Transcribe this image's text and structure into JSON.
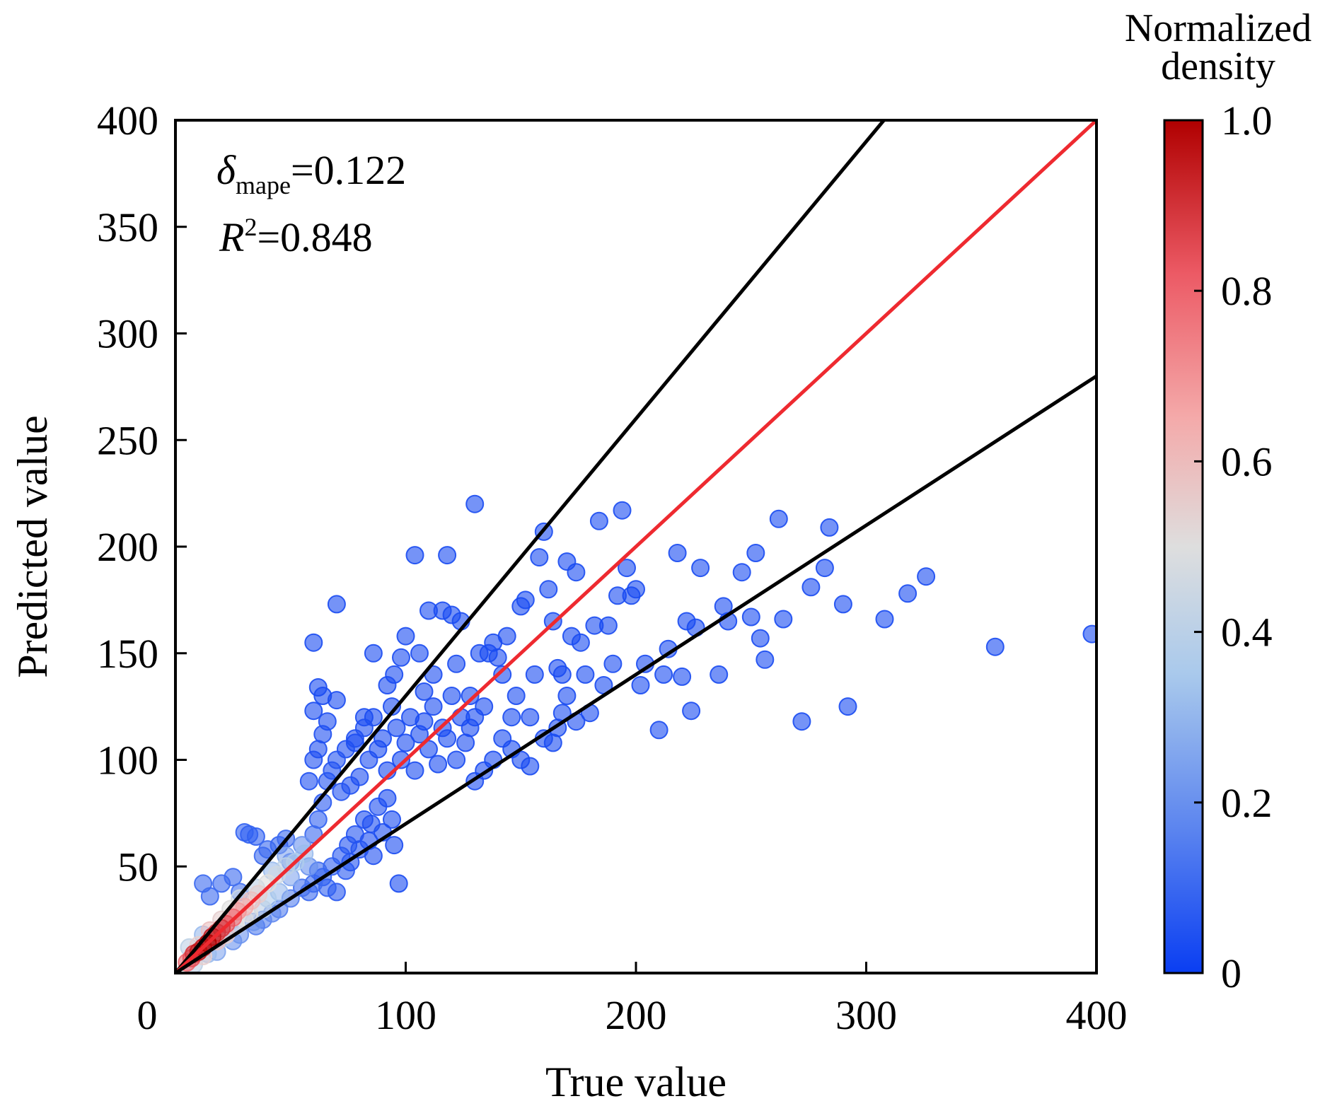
{
  "chart_data": {
    "type": "scatter",
    "title": "",
    "xlabel": "True value",
    "ylabel": "Predicted value",
    "xlim": [
      0,
      400
    ],
    "ylim": [
      0,
      400
    ],
    "x_ticks": [
      "0",
      "100",
      "200",
      "300",
      "400"
    ],
    "y_ticks": [
      "50",
      "100",
      "150",
      "200",
      "250",
      "300",
      "350",
      "400"
    ],
    "grid": false,
    "annotations": {
      "mape_symbol": "δ",
      "mape_subscript": "mape",
      "mape_value": "=0.122",
      "r2_symbol": "R",
      "r2_superscript": "2",
      "r2_value": "=0.848"
    },
    "lines": [
      {
        "slope": 1.3,
        "color": "#000000"
      },
      {
        "slope": 1.0,
        "color": "#ee2a30"
      },
      {
        "slope": 0.7,
        "color": "#000000"
      }
    ],
    "colorbar": {
      "title_line1": "Normalized",
      "title_line2": "density",
      "ticks": [
        "0",
        "0.2",
        "0.4",
        "0.6",
        "0.8",
        "1.0"
      ],
      "colors": [
        "#0a3ef2",
        "#5c85ef",
        "#a9c9ec",
        "#dedede",
        "#f4aaaa",
        "#ec5a65",
        "#b00000"
      ]
    },
    "points": [
      [
        5,
        5,
        0.8
      ],
      [
        7,
        7,
        0.85
      ],
      [
        8,
        9,
        0.9
      ],
      [
        10,
        10,
        0.95
      ],
      [
        12,
        12,
        0.95
      ],
      [
        14,
        14,
        1.0
      ],
      [
        16,
        17,
        0.95
      ],
      [
        18,
        19,
        0.9
      ],
      [
        20,
        21,
        0.9
      ],
      [
        22,
        23,
        0.85
      ],
      [
        25,
        26,
        0.8
      ],
      [
        27,
        29,
        0.7
      ],
      [
        30,
        31,
        0.65
      ],
      [
        33,
        34,
        0.6
      ],
      [
        36,
        37,
        0.55
      ],
      [
        40,
        42,
        0.5
      ],
      [
        44,
        46,
        0.45
      ],
      [
        48,
        50,
        0.4
      ],
      [
        52,
        52,
        0.35
      ],
      [
        56,
        56,
        0.3
      ],
      [
        10,
        13,
        0.55
      ],
      [
        12,
        8,
        0.55
      ],
      [
        15,
        20,
        0.6
      ],
      [
        18,
        15,
        0.6
      ],
      [
        20,
        25,
        0.55
      ],
      [
        22,
        18,
        0.55
      ],
      [
        24,
        30,
        0.5
      ],
      [
        26,
        22,
        0.5
      ],
      [
        28,
        35,
        0.45
      ],
      [
        30,
        25,
        0.45
      ],
      [
        32,
        28,
        0.5
      ],
      [
        35,
        40,
        0.4
      ],
      [
        38,
        30,
        0.4
      ],
      [
        40,
        35,
        0.35
      ],
      [
        42,
        48,
        0.3
      ],
      [
        45,
        38,
        0.3
      ],
      [
        48,
        55,
        0.25
      ],
      [
        50,
        45,
        0.25
      ],
      [
        55,
        60,
        0.2
      ],
      [
        58,
        50,
        0.2
      ],
      [
        6,
        12,
        0.4
      ],
      [
        8,
        4,
        0.4
      ],
      [
        12,
        18,
        0.3
      ],
      [
        14,
        9,
        0.3
      ],
      [
        18,
        10,
        0.25
      ],
      [
        20,
        16,
        0.35
      ],
      [
        25,
        15,
        0.2
      ],
      [
        28,
        18,
        0.2
      ],
      [
        35,
        22,
        0.15
      ],
      [
        38,
        25,
        0.15
      ],
      [
        15,
        36,
        0.1
      ],
      [
        12,
        42,
        0.1
      ],
      [
        20,
        42,
        0.1
      ],
      [
        25,
        45,
        0.1
      ],
      [
        28,
        38,
        0.12
      ],
      [
        30,
        66,
        0.08
      ],
      [
        32,
        65,
        0.08
      ],
      [
        35,
        64,
        0.08
      ],
      [
        38,
        55,
        0.1
      ],
      [
        40,
        58,
        0.1
      ],
      [
        45,
        60,
        0.08
      ],
      [
        48,
        63,
        0.1
      ],
      [
        50,
        52,
        0.12
      ],
      [
        34,
        24,
        0.2
      ],
      [
        42,
        28,
        0.18
      ],
      [
        45,
        30,
        0.15
      ],
      [
        50,
        35,
        0.15
      ],
      [
        55,
        40,
        0.12
      ],
      [
        58,
        38,
        0.1
      ],
      [
        60,
        42,
        0.1
      ],
      [
        62,
        48,
        0.1
      ],
      [
        64,
        45,
        0.08
      ],
      [
        66,
        40,
        0.08
      ],
      [
        68,
        50,
        0.08
      ],
      [
        70,
        38,
        0.06
      ],
      [
        72,
        55,
        0.06
      ],
      [
        74,
        48,
        0.06
      ],
      [
        75,
        60,
        0.05
      ],
      [
        76,
        52,
        0.05
      ],
      [
        78,
        65,
        0.05
      ],
      [
        80,
        58,
        0.05
      ],
      [
        82,
        72,
        0.04
      ],
      [
        84,
        62,
        0.04
      ],
      [
        85,
        70,
        0.04
      ],
      [
        86,
        55,
        0.04
      ],
      [
        88,
        78,
        0.04
      ],
      [
        90,
        66,
        0.04
      ],
      [
        92,
        82,
        0.03
      ],
      [
        94,
        72,
        0.03
      ],
      [
        95,
        60,
        0.03
      ],
      [
        97,
        42,
        0.03
      ],
      [
        60,
        65,
        0.1
      ],
      [
        62,
        72,
        0.08
      ],
      [
        64,
        80,
        0.06
      ],
      [
        66,
        90,
        0.05
      ],
      [
        68,
        95,
        0.05
      ],
      [
        70,
        100,
        0.05
      ],
      [
        72,
        85,
        0.05
      ],
      [
        74,
        105,
        0.04
      ],
      [
        76,
        88,
        0.04
      ],
      [
        78,
        110,
        0.04
      ],
      [
        80,
        92,
        0.04
      ],
      [
        82,
        115,
        0.04
      ],
      [
        84,
        100,
        0.04
      ],
      [
        86,
        120,
        0.03
      ],
      [
        88,
        105,
        0.03
      ],
      [
        90,
        110,
        0.03
      ],
      [
        92,
        95,
        0.03
      ],
      [
        94,
        125,
        0.03
      ],
      [
        96,
        115,
        0.03
      ],
      [
        98,
        100,
        0.03
      ],
      [
        100,
        108,
        0.03
      ],
      [
        102,
        120,
        0.03
      ],
      [
        104,
        95,
        0.03
      ],
      [
        106,
        112,
        0.03
      ],
      [
        108,
        118,
        0.03
      ],
      [
        110,
        105,
        0.03
      ],
      [
        112,
        125,
        0.03
      ],
      [
        114,
        98,
        0.03
      ],
      [
        116,
        115,
        0.03
      ],
      [
        118,
        110,
        0.03
      ],
      [
        120,
        130,
        0.03
      ],
      [
        122,
        100,
        0.03
      ],
      [
        124,
        120,
        0.03
      ],
      [
        126,
        108,
        0.03
      ],
      [
        128,
        115,
        0.03
      ],
      [
        58,
        90,
        0.04
      ],
      [
        60,
        100,
        0.04
      ],
      [
        62,
        105,
        0.04
      ],
      [
        64,
        112,
        0.04
      ],
      [
        66,
        118,
        0.04
      ],
      [
        60,
        123,
        0.03
      ],
      [
        62,
        134,
        0.03
      ],
      [
        64,
        130,
        0.03
      ],
      [
        70,
        128,
        0.03
      ],
      [
        60,
        155,
        0.03
      ],
      [
        70,
        173,
        0.03
      ],
      [
        78,
        108,
        0.03
      ],
      [
        82,
        120,
        0.03
      ],
      [
        86,
        150,
        0.03
      ],
      [
        92,
        135,
        0.03
      ],
      [
        95,
        140,
        0.03
      ],
      [
        98,
        148,
        0.03
      ],
      [
        100,
        158,
        0.03
      ],
      [
        104,
        196,
        0.03
      ],
      [
        106,
        150,
        0.03
      ],
      [
        108,
        132,
        0.03
      ],
      [
        110,
        170,
        0.03
      ],
      [
        112,
        140,
        0.03
      ],
      [
        116,
        170,
        0.03
      ],
      [
        118,
        196,
        0.03
      ],
      [
        120,
        168,
        0.03
      ],
      [
        122,
        145,
        0.03
      ],
      [
        124,
        165,
        0.03
      ],
      [
        130,
        220,
        0.03
      ],
      [
        128,
        130,
        0.03
      ],
      [
        130,
        120,
        0.03
      ],
      [
        132,
        150,
        0.03
      ],
      [
        134,
        125,
        0.03
      ],
      [
        136,
        150,
        0.03
      ],
      [
        138,
        155,
        0.03
      ],
      [
        140,
        148,
        0.03
      ],
      [
        142,
        140,
        0.03
      ],
      [
        144,
        158,
        0.03
      ],
      [
        146,
        120,
        0.03
      ],
      [
        148,
        130,
        0.03
      ],
      [
        150,
        172,
        0.03
      ],
      [
        152,
        175,
        0.03
      ],
      [
        154,
        120,
        0.03
      ],
      [
        156,
        140,
        0.03
      ],
      [
        158,
        195,
        0.03
      ],
      [
        160,
        207,
        0.03
      ],
      [
        162,
        180,
        0.03
      ],
      [
        164,
        165,
        0.03
      ],
      [
        166,
        143,
        0.03
      ],
      [
        168,
        140,
        0.03
      ],
      [
        170,
        193,
        0.03
      ],
      [
        172,
        158,
        0.03
      ],
      [
        174,
        188,
        0.03
      ],
      [
        176,
        155,
        0.03
      ],
      [
        178,
        140,
        0.03
      ],
      [
        180,
        122,
        0.03
      ],
      [
        182,
        163,
        0.03
      ],
      [
        184,
        212,
        0.03
      ],
      [
        186,
        135,
        0.03
      ],
      [
        188,
        163,
        0.03
      ],
      [
        190,
        145,
        0.03
      ],
      [
        192,
        177,
        0.03
      ],
      [
        194,
        217,
        0.03
      ],
      [
        196,
        190,
        0.03
      ],
      [
        198,
        177,
        0.03
      ],
      [
        130,
        90,
        0.03
      ],
      [
        134,
        95,
        0.03
      ],
      [
        138,
        100,
        0.03
      ],
      [
        142,
        110,
        0.03
      ],
      [
        146,
        105,
        0.03
      ],
      [
        150,
        100,
        0.03
      ],
      [
        154,
        97,
        0.03
      ],
      [
        160,
        110,
        0.03
      ],
      [
        164,
        108,
        0.03
      ],
      [
        166,
        115,
        0.03
      ],
      [
        168,
        122,
        0.03
      ],
      [
        170,
        130,
        0.03
      ],
      [
        174,
        118,
        0.03
      ],
      [
        200,
        180,
        0.03
      ],
      [
        202,
        135,
        0.03
      ],
      [
        204,
        145,
        0.03
      ],
      [
        210,
        114,
        0.03
      ],
      [
        212,
        140,
        0.03
      ],
      [
        214,
        152,
        0.03
      ],
      [
        218,
        197,
        0.03
      ],
      [
        220,
        139,
        0.03
      ],
      [
        222,
        165,
        0.03
      ],
      [
        224,
        123,
        0.03
      ],
      [
        226,
        162,
        0.03
      ],
      [
        228,
        190,
        0.03
      ],
      [
        236,
        140,
        0.03
      ],
      [
        238,
        172,
        0.03
      ],
      [
        240,
        165,
        0.03
      ],
      [
        246,
        188,
        0.03
      ],
      [
        250,
        167,
        0.03
      ],
      [
        252,
        197,
        0.03
      ],
      [
        254,
        157,
        0.03
      ],
      [
        256,
        147,
        0.03
      ],
      [
        262,
        213,
        0.03
      ],
      [
        264,
        166,
        0.03
      ],
      [
        272,
        118,
        0.03
      ],
      [
        276,
        181,
        0.03
      ],
      [
        282,
        190,
        0.03
      ],
      [
        284,
        209,
        0.03
      ],
      [
        290,
        173,
        0.03
      ],
      [
        292,
        125,
        0.03
      ],
      [
        308,
        166,
        0.03
      ],
      [
        318,
        178,
        0.03
      ],
      [
        326,
        186,
        0.03
      ],
      [
        356,
        153,
        0.03
      ],
      [
        398,
        159,
        0.03
      ]
    ]
  }
}
